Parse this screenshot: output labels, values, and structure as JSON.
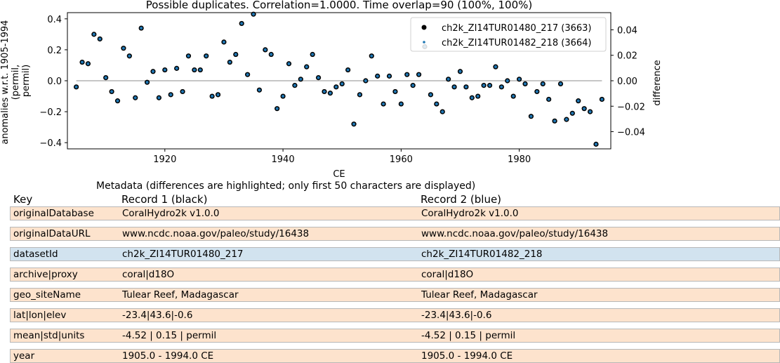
{
  "chart_data": {
    "type": "scatter",
    "title": "Possible duplicates. Correlation=1.0000. Time overlap=90 (100%, 100%)",
    "xlabel": "CE",
    "ylabel": "anomalies w.r.t. 1905-1994 (permil, permil)",
    "y2label": "difference",
    "xlim": [
      1903.5,
      1995.5
    ],
    "ylim": [
      -0.44,
      0.44
    ],
    "y2lim": [
      -0.0535,
      0.0535
    ],
    "xticks": [
      "1920",
      "1940",
      "1960",
      "1980"
    ],
    "yticks": [
      "0.4",
      "0.2",
      "0.0",
      "−0.2",
      "−0.4"
    ],
    "y2ticks": [
      "0.04",
      "0.02",
      "0.00",
      "−0.02",
      "−0.04"
    ],
    "legend_position": "top-right",
    "grid": false,
    "difference_line": 0.0,
    "series": [
      {
        "name": "ch2k_ZI14TUR01480_217 (3663)",
        "color": "#000000",
        "x": [
          1905,
          1906,
          1907,
          1908,
          1909,
          1910,
          1911,
          1912,
          1913,
          1914,
          1915,
          1916,
          1917,
          1918,
          1919,
          1920,
          1921,
          1922,
          1923,
          1924,
          1925,
          1926,
          1927,
          1928,
          1929,
          1930,
          1931,
          1932,
          1933,
          1934,
          1935,
          1936,
          1937,
          1938,
          1939,
          1940,
          1941,
          1942,
          1943,
          1944,
          1945,
          1946,
          1947,
          1948,
          1949,
          1950,
          1951,
          1952,
          1953,
          1954,
          1955,
          1956,
          1957,
          1958,
          1959,
          1960,
          1961,
          1962,
          1963,
          1964,
          1965,
          1966,
          1967,
          1968,
          1969,
          1970,
          1971,
          1972,
          1973,
          1974,
          1975,
          1976,
          1977,
          1978,
          1979,
          1980,
          1981,
          1982,
          1983,
          1984,
          1985,
          1986,
          1987,
          1988,
          1989,
          1990,
          1991,
          1992,
          1993,
          1994
        ],
        "y": [
          -0.04,
          0.12,
          0.11,
          0.3,
          0.27,
          0.02,
          -0.07,
          -0.13,
          0.21,
          0.16,
          -0.11,
          0.34,
          -0.01,
          0.06,
          -0.11,
          0.07,
          -0.09,
          0.08,
          -0.07,
          0.16,
          0.07,
          0.07,
          0.16,
          -0.1,
          -0.09,
          0.25,
          0.12,
          0.17,
          0.37,
          0.04,
          0.43,
          -0.06,
          0.2,
          0.17,
          -0.18,
          -0.1,
          0.11,
          -0.03,
          0.01,
          0.09,
          0.17,
          0.02,
          -0.07,
          -0.08,
          -0.04,
          -0.02,
          0.07,
          -0.28,
          -0.09,
          0.0,
          0.16,
          0.03,
          -0.15,
          0.03,
          -0.07,
          -0.15,
          0.04,
          -0.03,
          0.04,
          0.22,
          -0.09,
          -0.15,
          -0.2,
          0.01,
          -0.04,
          0.06,
          -0.04,
          -0.11,
          -0.1,
          -0.03,
          -0.03,
          0.09,
          -0.04,
          0.0,
          -0.1,
          0.01,
          -0.02,
          -0.23,
          -0.07,
          -0.02,
          -0.12,
          -0.26,
          -0.02,
          -0.25,
          -0.21,
          -0.13,
          -0.18,
          -0.2,
          -0.41,
          -0.12
        ]
      },
      {
        "name": "ch2k_ZI14TUR01482_218 (3664)",
        "color": "#1f77b4"
      }
    ]
  },
  "metadata": {
    "title": "Metadata (differences are highlighted; only first 50 characters are displayed)",
    "headers": [
      "Key",
      "Record 1 (black)",
      "Record 2 (blue)"
    ],
    "rows": [
      {
        "key": "originalDatabase",
        "r1": "CoralHydro2k v1.0.0",
        "r2": "CoralHydro2k v1.0.0",
        "highlight": "#fde3cd"
      },
      {
        "key": "originalDataURL",
        "r1": "www.ncdc.noaa.gov/paleo/study/16438",
        "r2": "www.ncdc.noaa.gov/paleo/study/16438",
        "highlight": "#fde3cd"
      },
      {
        "key": "datasetId",
        "r1": "ch2k_ZI14TUR01480_217",
        "r2": "ch2k_ZI14TUR01482_218",
        "highlight": "#d2e3ef"
      },
      {
        "key": "archive|proxy",
        "r1": "coral|d18O",
        "r2": "coral|d18O",
        "highlight": "#fde3cd"
      },
      {
        "key": "geo_siteName",
        "r1": "Tulear Reef, Madagascar",
        "r2": "Tulear Reef, Madagascar",
        "highlight": "#fde3cd"
      },
      {
        "key": "lat|lon|elev",
        "r1": "-23.4|43.6|-0.6",
        "r2": "-23.4|43.6|-0.6",
        "highlight": "#fde3cd"
      },
      {
        "key": "mean|std|units",
        "r1": "-4.52 | 0.15 | permil",
        "r2": "-4.52 | 0.15 | permil",
        "highlight": "#fde3cd"
      },
      {
        "key": "year",
        "r1": "1905.0 - 1994.0 CE",
        "r2": "1905.0 - 1994.0 CE",
        "highlight": "#fde3cd"
      }
    ]
  }
}
